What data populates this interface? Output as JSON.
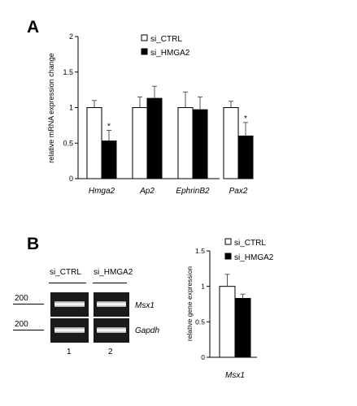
{
  "figure": {
    "panel_a_letter": "A",
    "panel_b_letter": "B"
  },
  "chart_data": [
    {
      "type": "bar",
      "panel": "A",
      "ylabel": "relative mRNA expression change",
      "xlabel": "",
      "ylim": [
        0,
        2
      ],
      "yticks": [
        "0",
        "0.5",
        "1",
        "1.5",
        "2"
      ],
      "ytick_values": [
        0,
        0.5,
        1,
        1.5,
        2
      ],
      "categories": [
        "Hmga2",
        "Ap2",
        "EphrinB2",
        "Pax2"
      ],
      "series": [
        {
          "name": "si_CTRL",
          "color": "#ffffff",
          "values": [
            1.0,
            1.0,
            1.0,
            1.0
          ],
          "errors": [
            0.1,
            0.15,
            0.22,
            0.09
          ]
        },
        {
          "name": "si_HMGA2",
          "color": "#000000",
          "values": [
            0.53,
            1.13,
            0.97,
            0.6
          ],
          "errors": [
            0.15,
            0.17,
            0.18,
            0.19
          ]
        }
      ],
      "significance": [
        "*",
        "",
        "",
        "*"
      ],
      "legend_position": "top"
    },
    {
      "type": "bar",
      "panel": "B",
      "ylabel": "relative gene expression",
      "xlabel": "",
      "ylim": [
        0,
        1.5
      ],
      "yticks": [
        "0",
        "0.5",
        "1",
        "1.5"
      ],
      "ytick_values": [
        0,
        0.5,
        1,
        1.5
      ],
      "categories": [
        "Msx1"
      ],
      "series": [
        {
          "name": "si_CTRL",
          "color": "#ffffff",
          "values": [
            1.0
          ],
          "errors": [
            0.17
          ]
        },
        {
          "name": "si_HMGA2",
          "color": "#000000",
          "values": [
            0.83
          ],
          "errors": [
            0.06
          ]
        }
      ],
      "legend_position": "top"
    }
  ],
  "gel": {
    "lane_labels": [
      "si_CTRL",
      "si_HMGA2"
    ],
    "lane_numbers": [
      "1",
      "2"
    ],
    "marker_labels": [
      "200",
      "200"
    ],
    "gene_labels": [
      "Msx1",
      "Gapdh"
    ]
  }
}
